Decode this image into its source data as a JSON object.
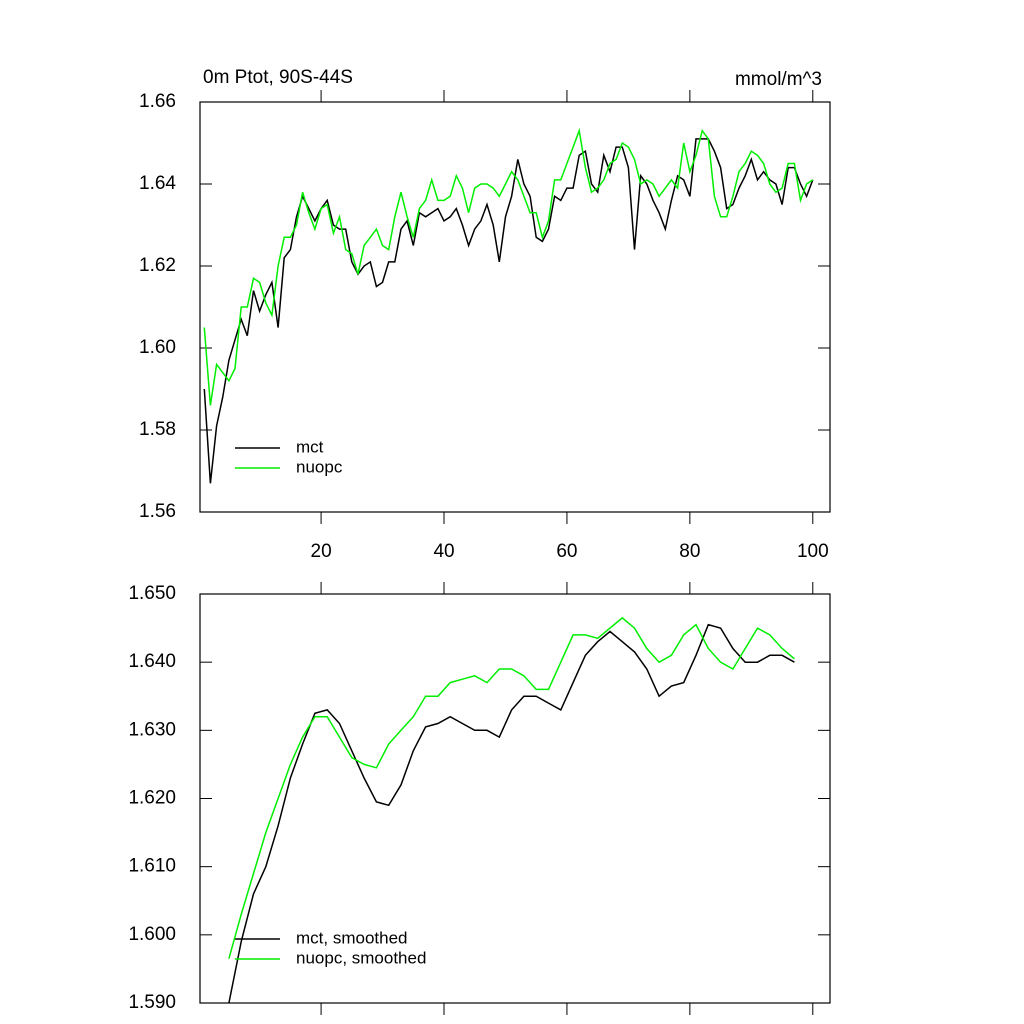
{
  "chart_data": [
    {
      "type": "line",
      "title": "0m Ptot, 90S-44S",
      "units": "mmol/m^3",
      "x": [
        1,
        2,
        3,
        4,
        5,
        6,
        7,
        8,
        9,
        10,
        11,
        12,
        13,
        14,
        15,
        16,
        17,
        18,
        19,
        20,
        21,
        22,
        23,
        24,
        25,
        26,
        27,
        28,
        29,
        30,
        31,
        32,
        33,
        34,
        35,
        36,
        37,
        38,
        39,
        40,
        41,
        42,
        43,
        44,
        45,
        46,
        47,
        48,
        49,
        50,
        51,
        52,
        53,
        54,
        55,
        56,
        57,
        58,
        59,
        60,
        61,
        62,
        63,
        64,
        65,
        66,
        67,
        68,
        69,
        70,
        71,
        72,
        73,
        74,
        75,
        76,
        77,
        78,
        79,
        80,
        81,
        82,
        83,
        84,
        85,
        86,
        87,
        88,
        89,
        90,
        91,
        92,
        93,
        94,
        95,
        96,
        97,
        98,
        99,
        100
      ],
      "series": [
        {
          "name": "mct",
          "color": "#000000",
          "values": [
            1.59,
            1.567,
            1.581,
            1.588,
            1.597,
            1.602,
            1.607,
            1.603,
            1.614,
            1.609,
            1.613,
            1.616,
            1.605,
            1.622,
            1.624,
            1.632,
            1.637,
            1.634,
            1.631,
            1.634,
            1.636,
            1.63,
            1.629,
            1.629,
            1.621,
            1.618,
            1.62,
            1.621,
            1.615,
            1.616,
            1.621,
            1.621,
            1.629,
            1.631,
            1.625,
            1.633,
            1.632,
            1.633,
            1.634,
            1.631,
            1.632,
            1.634,
            1.63,
            1.625,
            1.629,
            1.631,
            1.635,
            1.63,
            1.621,
            1.632,
            1.637,
            1.646,
            1.64,
            1.637,
            1.627,
            1.626,
            1.629,
            1.637,
            1.636,
            1.639,
            1.639,
            1.647,
            1.648,
            1.64,
            1.638,
            1.647,
            1.643,
            1.649,
            1.649,
            1.644,
            1.624,
            1.642,
            1.64,
            1.636,
            1.633,
            1.629,
            1.636,
            1.642,
            1.641,
            1.637,
            1.651,
            1.651,
            1.651,
            1.648,
            1.644,
            1.634,
            1.635,
            1.639,
            1.642,
            1.646,
            1.641,
            1.643,
            1.641,
            1.64,
            1.635,
            1.644,
            1.644,
            1.64,
            1.637,
            1.641
          ]
        },
        {
          "name": "nuopc",
          "color": "#00ee00",
          "values": [
            1.605,
            1.586,
            1.596,
            1.594,
            1.592,
            1.595,
            1.61,
            1.61,
            1.617,
            1.616,
            1.611,
            1.608,
            1.62,
            1.627,
            1.627,
            1.63,
            1.638,
            1.633,
            1.629,
            1.634,
            1.635,
            1.628,
            1.632,
            1.624,
            1.623,
            1.618,
            1.625,
            1.627,
            1.629,
            1.625,
            1.624,
            1.632,
            1.638,
            1.632,
            1.627,
            1.634,
            1.636,
            1.641,
            1.636,
            1.636,
            1.637,
            1.642,
            1.639,
            1.633,
            1.639,
            1.64,
            1.64,
            1.639,
            1.637,
            1.64,
            1.643,
            1.641,
            1.637,
            1.633,
            1.633,
            1.627,
            1.631,
            1.641,
            1.641,
            1.645,
            1.649,
            1.653,
            1.644,
            1.638,
            1.639,
            1.641,
            1.645,
            1.646,
            1.65,
            1.649,
            1.646,
            1.64,
            1.641,
            1.64,
            1.637,
            1.639,
            1.641,
            1.639,
            1.65,
            1.643,
            1.647,
            1.653,
            1.651,
            1.637,
            1.632,
            1.632,
            1.637,
            1.643,
            1.645,
            1.648,
            1.647,
            1.645,
            1.64,
            1.638,
            1.639,
            1.645,
            1.645,
            1.636,
            1.64,
            1.641
          ]
        }
      ],
      "xlim": [
        0.3,
        102.8
      ],
      "xticks": [
        20,
        40,
        60,
        80,
        100
      ],
      "xtick_labels": true,
      "ylim": [
        1.56,
        1.66
      ],
      "yticks": [
        1.56,
        1.58,
        {
          "value": 1.6,
          "label": "1.60"
        },
        1.62,
        1.64,
        1.66
      ],
      "legend": "lower left"
    },
    {
      "type": "line",
      "x": [
        5,
        7,
        9,
        11,
        13,
        15,
        17,
        19,
        21,
        23,
        25,
        27,
        29,
        31,
        33,
        35,
        37,
        39,
        41,
        43,
        45,
        47,
        49,
        51,
        53,
        55,
        57,
        59,
        61,
        63,
        65,
        67,
        69,
        71,
        73,
        75,
        77,
        79,
        81,
        83,
        85,
        87,
        89,
        91,
        93,
        95,
        97
      ],
      "series": [
        {
          "name": "mct, smoothed",
          "color": "#000000",
          "values": [
            1.59,
            1.599,
            1.606,
            1.61,
            1.616,
            1.623,
            1.628,
            1.6325,
            1.633,
            1.631,
            1.627,
            1.623,
            1.6195,
            1.619,
            1.622,
            1.627,
            1.6305,
            1.631,
            1.632,
            1.631,
            1.63,
            1.63,
            1.629,
            1.633,
            1.635,
            1.635,
            1.634,
            1.633,
            1.637,
            1.641,
            1.643,
            1.6445,
            1.643,
            1.6415,
            1.639,
            1.635,
            1.6365,
            1.637,
            1.641,
            1.6455,
            1.645,
            1.642,
            1.64,
            1.64,
            1.641,
            1.641,
            1.64
          ]
        },
        {
          "name": "nuopc, smoothed",
          "color": "#00ee00",
          "values": [
            1.5965,
            1.603,
            1.609,
            1.615,
            1.62,
            1.625,
            1.629,
            1.632,
            1.632,
            1.629,
            1.626,
            1.625,
            1.6245,
            1.628,
            1.63,
            1.632,
            1.635,
            1.635,
            1.637,
            1.6375,
            1.638,
            1.637,
            1.639,
            1.639,
            1.638,
            1.636,
            1.636,
            1.64,
            1.644,
            1.644,
            1.6435,
            1.645,
            1.6465,
            1.645,
            1.642,
            1.64,
            1.641,
            1.644,
            1.6455,
            1.642,
            1.64,
            1.639,
            1.642,
            1.645,
            1.644,
            1.642,
            1.6405
          ]
        }
      ],
      "xlim": [
        0.3,
        102.8
      ],
      "xticks": [
        20,
        40,
        60,
        80,
        100
      ],
      "xtick_labels": false,
      "ylim": [
        1.59,
        1.65
      ],
      "yticks": [
        {
          "value": 1.59,
          "label": "1.590"
        },
        {
          "value": 1.6,
          "label": "1.600"
        },
        {
          "value": 1.61,
          "label": "1.610"
        },
        {
          "value": 1.62,
          "label": "1.620"
        },
        {
          "value": 1.63,
          "label": "1.630"
        },
        {
          "value": 1.64,
          "label": "1.640"
        },
        {
          "value": 1.65,
          "label": "1.650"
        }
      ],
      "legend": "lower left"
    }
  ]
}
